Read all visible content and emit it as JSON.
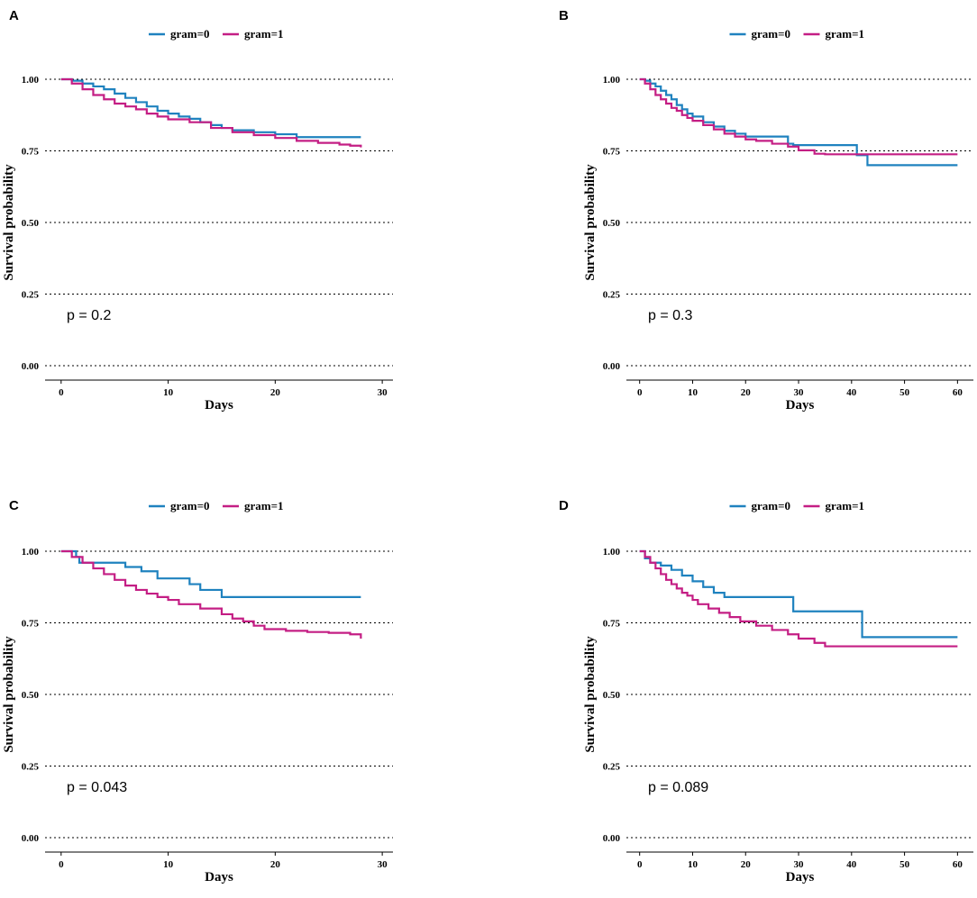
{
  "chart_data": [
    {
      "panel": "A",
      "type": "line",
      "step": true,
      "xlabel": "Days",
      "ylabel": "Survival probability",
      "xlim": [
        -1.5,
        31
      ],
      "ylim": [
        0,
        1
      ],
      "xticks": [
        0,
        10,
        20,
        30
      ],
      "yticks": [
        "0.00",
        "0.25",
        "0.50",
        "0.75",
        "1.00"
      ],
      "p_value": "p = 0.2",
      "legend": [
        "gram=0",
        "gram=1"
      ],
      "grid": true,
      "series": [
        {
          "name": "gram=0",
          "color": "#1f82bf",
          "x": [
            0,
            1,
            2,
            3,
            4,
            5,
            6,
            7,
            8,
            9,
            10,
            11,
            12,
            13,
            14,
            15,
            16,
            18,
            20,
            22,
            25,
            28
          ],
          "y": [
            1.0,
            0.995,
            0.985,
            0.975,
            0.965,
            0.95,
            0.935,
            0.92,
            0.905,
            0.89,
            0.88,
            0.87,
            0.862,
            0.85,
            0.84,
            0.83,
            0.822,
            0.815,
            0.808,
            0.798,
            0.798,
            0.798
          ]
        },
        {
          "name": "gram=1",
          "color": "#c41e84",
          "x": [
            0,
            1,
            2,
            3,
            4,
            5,
            6,
            7,
            8,
            9,
            10,
            12,
            14,
            16,
            18,
            20,
            22,
            24,
            26,
            27,
            28
          ],
          "y": [
            1.0,
            0.985,
            0.965,
            0.945,
            0.93,
            0.915,
            0.905,
            0.895,
            0.88,
            0.87,
            0.86,
            0.85,
            0.83,
            0.815,
            0.805,
            0.795,
            0.785,
            0.778,
            0.772,
            0.768,
            0.762
          ]
        }
      ]
    },
    {
      "panel": "B",
      "type": "line",
      "step": true,
      "xlabel": "Days",
      "ylabel": "Survival probability",
      "xlim": [
        -2.5,
        63
      ],
      "ylim": [
        0,
        1
      ],
      "xticks": [
        0,
        10,
        20,
        30,
        40,
        50,
        60
      ],
      "yticks": [
        "0.00",
        "0.25",
        "0.50",
        "0.75",
        "1.00"
      ],
      "p_value": "p = 0.3",
      "legend": [
        "gram=0",
        "gram=1"
      ],
      "grid": true,
      "series": [
        {
          "name": "gram=0",
          "color": "#1f82bf",
          "x": [
            0,
            1,
            2,
            3,
            4,
            5,
            6,
            7,
            8,
            9,
            10,
            12,
            14,
            16,
            18,
            20,
            22,
            25,
            28,
            29,
            30,
            35,
            41,
            43,
            60
          ],
          "y": [
            1.0,
            0.995,
            0.985,
            0.975,
            0.96,
            0.945,
            0.93,
            0.91,
            0.895,
            0.88,
            0.87,
            0.85,
            0.835,
            0.82,
            0.81,
            0.8,
            0.8,
            0.8,
            0.775,
            0.77,
            0.77,
            0.77,
            0.735,
            0.7,
            0.7
          ]
        },
        {
          "name": "gram=1",
          "color": "#c41e84",
          "x": [
            0,
            1,
            2,
            3,
            4,
            5,
            6,
            7,
            8,
            9,
            10,
            12,
            14,
            16,
            18,
            20,
            22,
            25,
            28,
            30,
            33,
            35,
            60
          ],
          "y": [
            1.0,
            0.985,
            0.965,
            0.945,
            0.93,
            0.915,
            0.9,
            0.89,
            0.875,
            0.865,
            0.855,
            0.84,
            0.825,
            0.81,
            0.8,
            0.79,
            0.785,
            0.775,
            0.765,
            0.752,
            0.74,
            0.738,
            0.738
          ]
        }
      ]
    },
    {
      "panel": "C",
      "type": "line",
      "step": true,
      "xlabel": "Days",
      "ylabel": "Survival probability",
      "xlim": [
        -1.5,
        31
      ],
      "ylim": [
        0,
        1
      ],
      "xticks": [
        0,
        10,
        20,
        30
      ],
      "yticks": [
        "0.00",
        "0.25",
        "0.50",
        "0.75",
        "1.00"
      ],
      "p_value": "p = 0.043",
      "legend": [
        "gram=0",
        "gram=1"
      ],
      "grid": true,
      "series": [
        {
          "name": "gram=0",
          "color": "#1f82bf",
          "x": [
            0,
            1.4,
            1.7,
            6,
            7.5,
            9,
            12,
            13,
            15,
            16,
            28
          ],
          "y": [
            1.0,
            0.98,
            0.96,
            0.945,
            0.93,
            0.905,
            0.885,
            0.865,
            0.84,
            0.84,
            0.84
          ]
        },
        {
          "name": "gram=1",
          "color": "#c41e84",
          "x": [
            0,
            1,
            2,
            3,
            4,
            5,
            6,
            7,
            8,
            9,
            10,
            11,
            13,
            15,
            16,
            17,
            18,
            19,
            21,
            23,
            25,
            27,
            28
          ],
          "y": [
            1.0,
            0.98,
            0.96,
            0.94,
            0.92,
            0.9,
            0.88,
            0.865,
            0.852,
            0.84,
            0.83,
            0.815,
            0.8,
            0.78,
            0.765,
            0.755,
            0.74,
            0.728,
            0.722,
            0.718,
            0.715,
            0.71,
            0.695
          ]
        }
      ]
    },
    {
      "panel": "D",
      "type": "line",
      "step": true,
      "xlabel": "Days",
      "ylabel": "Survival probability",
      "xlim": [
        -2.5,
        63
      ],
      "ylim": [
        0,
        1
      ],
      "xticks": [
        0,
        10,
        20,
        30,
        40,
        50,
        60
      ],
      "yticks": [
        "0.00",
        "0.25",
        "0.50",
        "0.75",
        "1.00"
      ],
      "p_value": "p = 0.089",
      "legend": [
        "gram=0",
        "gram=1"
      ],
      "grid": true,
      "series": [
        {
          "name": "gram=0",
          "color": "#1f82bf",
          "x": [
            0,
            1,
            2,
            4,
            6,
            8,
            10,
            12,
            14,
            16,
            20,
            28,
            29,
            41,
            42,
            60
          ],
          "y": [
            1.0,
            0.975,
            0.96,
            0.95,
            0.935,
            0.915,
            0.895,
            0.875,
            0.855,
            0.84,
            0.84,
            0.84,
            0.79,
            0.79,
            0.7,
            0.7
          ]
        },
        {
          "name": "gram=1",
          "color": "#c41e84",
          "x": [
            0,
            1,
            2,
            3,
            4,
            5,
            6,
            7,
            8,
            9,
            10,
            11,
            13,
            15,
            17,
            19,
            22,
            25,
            28,
            30,
            33,
            35,
            60
          ],
          "y": [
            1.0,
            0.98,
            0.96,
            0.94,
            0.92,
            0.9,
            0.885,
            0.87,
            0.855,
            0.845,
            0.83,
            0.815,
            0.8,
            0.785,
            0.77,
            0.755,
            0.74,
            0.725,
            0.71,
            0.695,
            0.68,
            0.668,
            0.668
          ]
        }
      ]
    }
  ]
}
